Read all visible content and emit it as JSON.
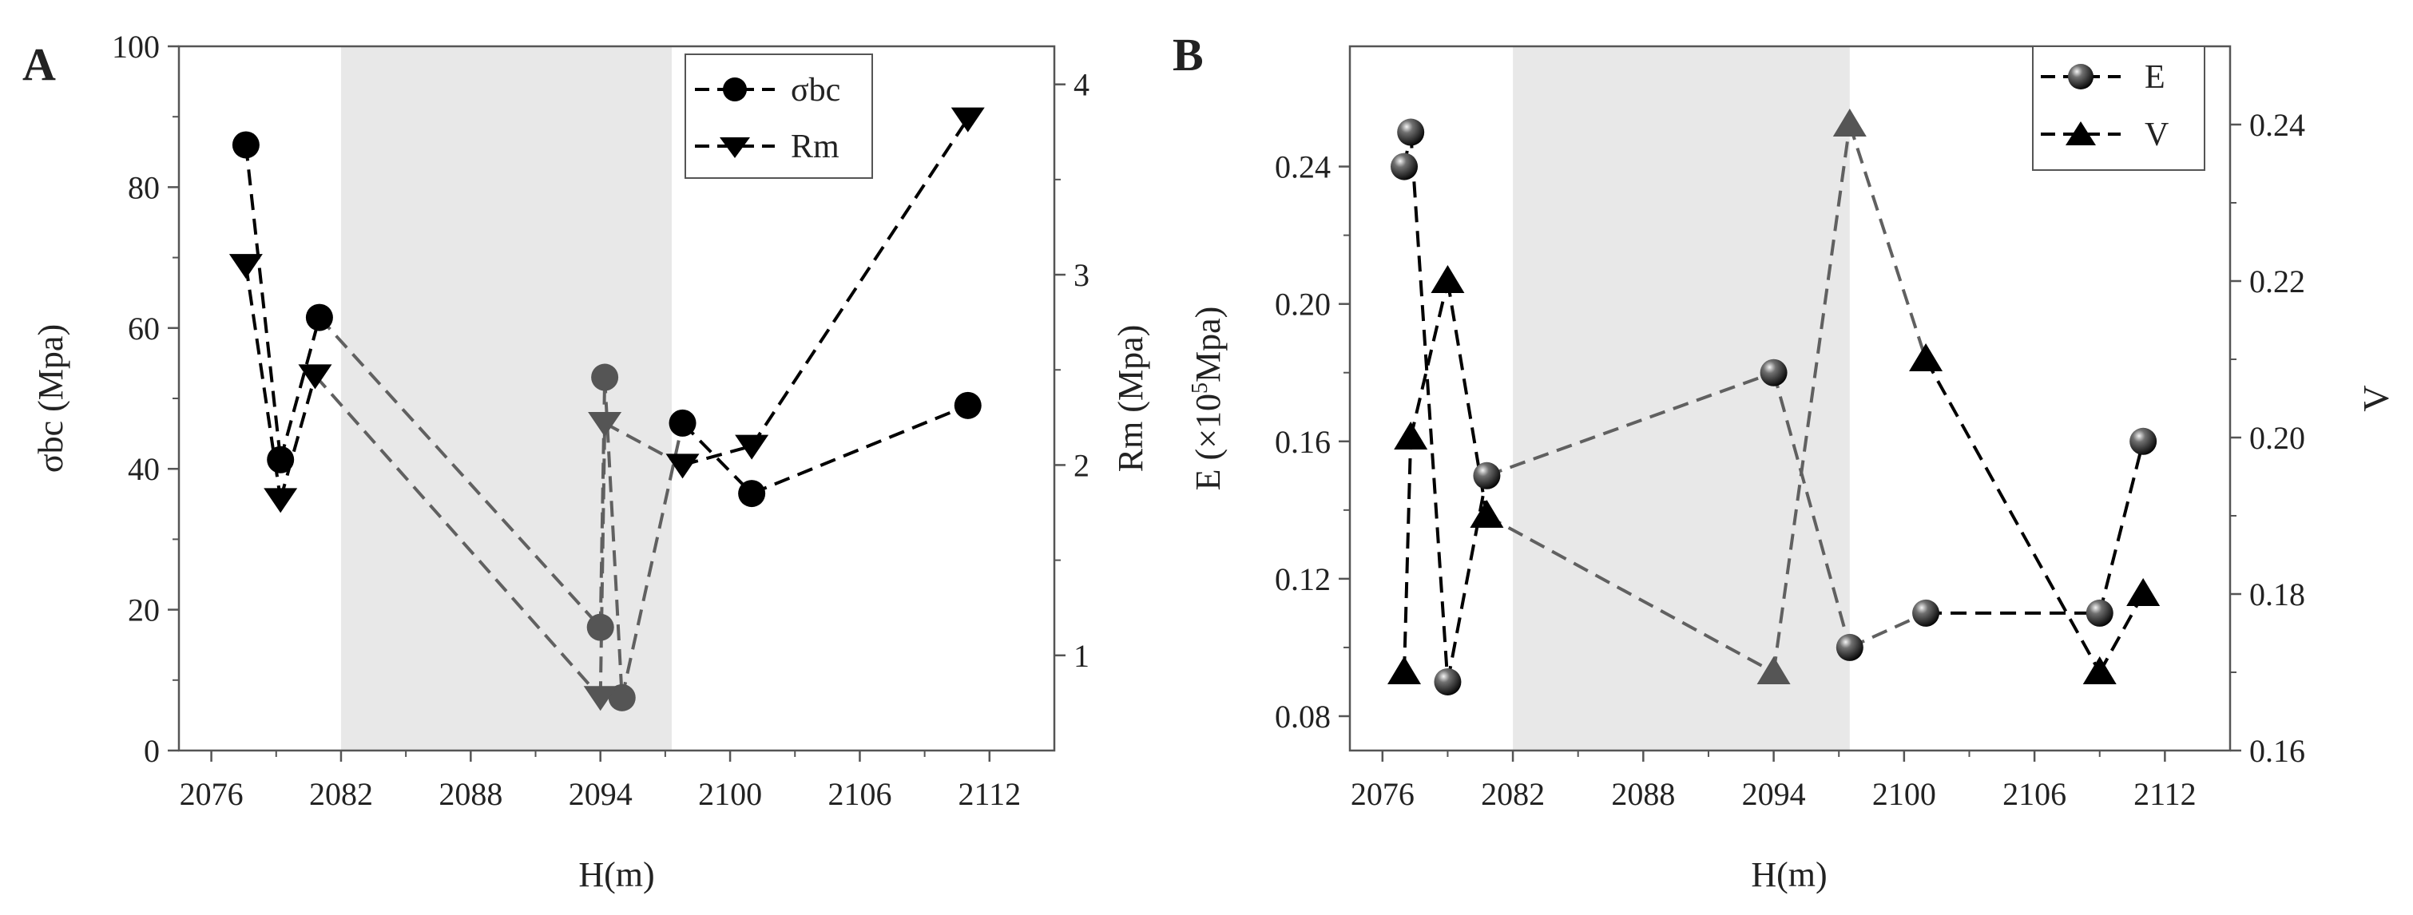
{
  "chart_data": [
    {
      "panel_label": "A",
      "type": "line",
      "xlabel": "H(m)",
      "ylabel_left": "σbc (Mpa)",
      "ylabel_right": "Rm (Mpa)",
      "xlim": [
        2074.5,
        2115
      ],
      "x_ticks": [
        2076,
        2082,
        2088,
        2094,
        2100,
        2106,
        2112
      ],
      "x_tick_labels": [
        "2076",
        "2082",
        "2088",
        "2094",
        "2100",
        "2106",
        "2112"
      ],
      "ylim_left": [
        0,
        100
      ],
      "y_ticks_left": [
        0,
        20,
        40,
        60,
        80,
        100
      ],
      "y_tick_labels_left": [
        "0",
        "20",
        "40",
        "60",
        "80",
        "100"
      ],
      "ylim_right": [
        0.5,
        4.2
      ],
      "y_ticks_right": [
        1,
        2,
        3,
        4
      ],
      "y_tick_labels_right": [
        "1",
        "2",
        "3",
        "4"
      ],
      "shaded_x_range": [
        2082,
        2097.3
      ],
      "legend_position": "top-right",
      "series": [
        {
          "name": "σbc",
          "axis": "left",
          "marker": "circle",
          "x": [
            2077.6,
            2079.2,
            2081.0,
            2094.0,
            2094.2,
            2095.0,
            2097.8,
            2101.0,
            2111.0
          ],
          "values": [
            86,
            41.3,
            61.5,
            17.5,
            53,
            7.5,
            46.5,
            36.5,
            49
          ]
        },
        {
          "name": "Rm",
          "axis": "right",
          "marker": "triangle-down",
          "x": [
            2077.6,
            2079.2,
            2080.8,
            2094.0,
            2094.2,
            2097.8,
            2101.0,
            2111.0
          ],
          "values": [
            3.05,
            1.82,
            2.47,
            0.78,
            2.22,
            2.0,
            2.1,
            3.82
          ]
        }
      ]
    },
    {
      "panel_label": "B",
      "type": "line",
      "xlabel": "H(m)",
      "ylabel_left_main": "E (×10",
      "ylabel_left_sup": "5",
      "ylabel_left_tail": "Mpa)",
      "ylabel_right": "V",
      "xlim": [
        2074.5,
        2115
      ],
      "x_ticks": [
        2076,
        2082,
        2088,
        2094,
        2100,
        2106,
        2112
      ],
      "x_tick_labels": [
        "2076",
        "2082",
        "2088",
        "2094",
        "2100",
        "2106",
        "2112"
      ],
      "ylim_left": [
        0.07,
        0.275
      ],
      "y_ticks_left": [
        0.08,
        0.12,
        0.16,
        0.2,
        0.24
      ],
      "y_tick_labels_left": [
        "0.08",
        "0.12",
        "0.16",
        "0.20",
        "0.24"
      ],
      "ylim_right": [
        0.16,
        0.25
      ],
      "y_ticks_right": [
        0.16,
        0.18,
        0.2,
        0.22,
        0.24
      ],
      "y_tick_labels_right": [
        "0.16",
        "0.18",
        "0.20",
        "0.22",
        "0.24"
      ],
      "shaded_x_range": [
        2082,
        2097.5
      ],
      "legend_position": "top-right",
      "series": [
        {
          "name": "E",
          "axis": "left",
          "marker": "sphere",
          "x": [
            2077.0,
            2077.3,
            2079.0,
            2080.8,
            2094.0,
            2097.5,
            2101.0,
            2109.0,
            2111.0
          ],
          "values": [
            0.24,
            0.25,
            0.09,
            0.15,
            0.18,
            0.1,
            0.11,
            0.11,
            0.16
          ]
        },
        {
          "name": "V",
          "axis": "right",
          "marker": "triangle-up",
          "x": [
            2077.0,
            2077.3,
            2079.0,
            2080.8,
            2094.0,
            2097.5,
            2101.0,
            2109.0,
            2111.0
          ],
          "values": [
            0.17,
            0.2,
            0.22,
            0.19,
            0.17,
            0.24,
            0.21,
            0.17,
            0.18
          ]
        }
      ]
    }
  ]
}
